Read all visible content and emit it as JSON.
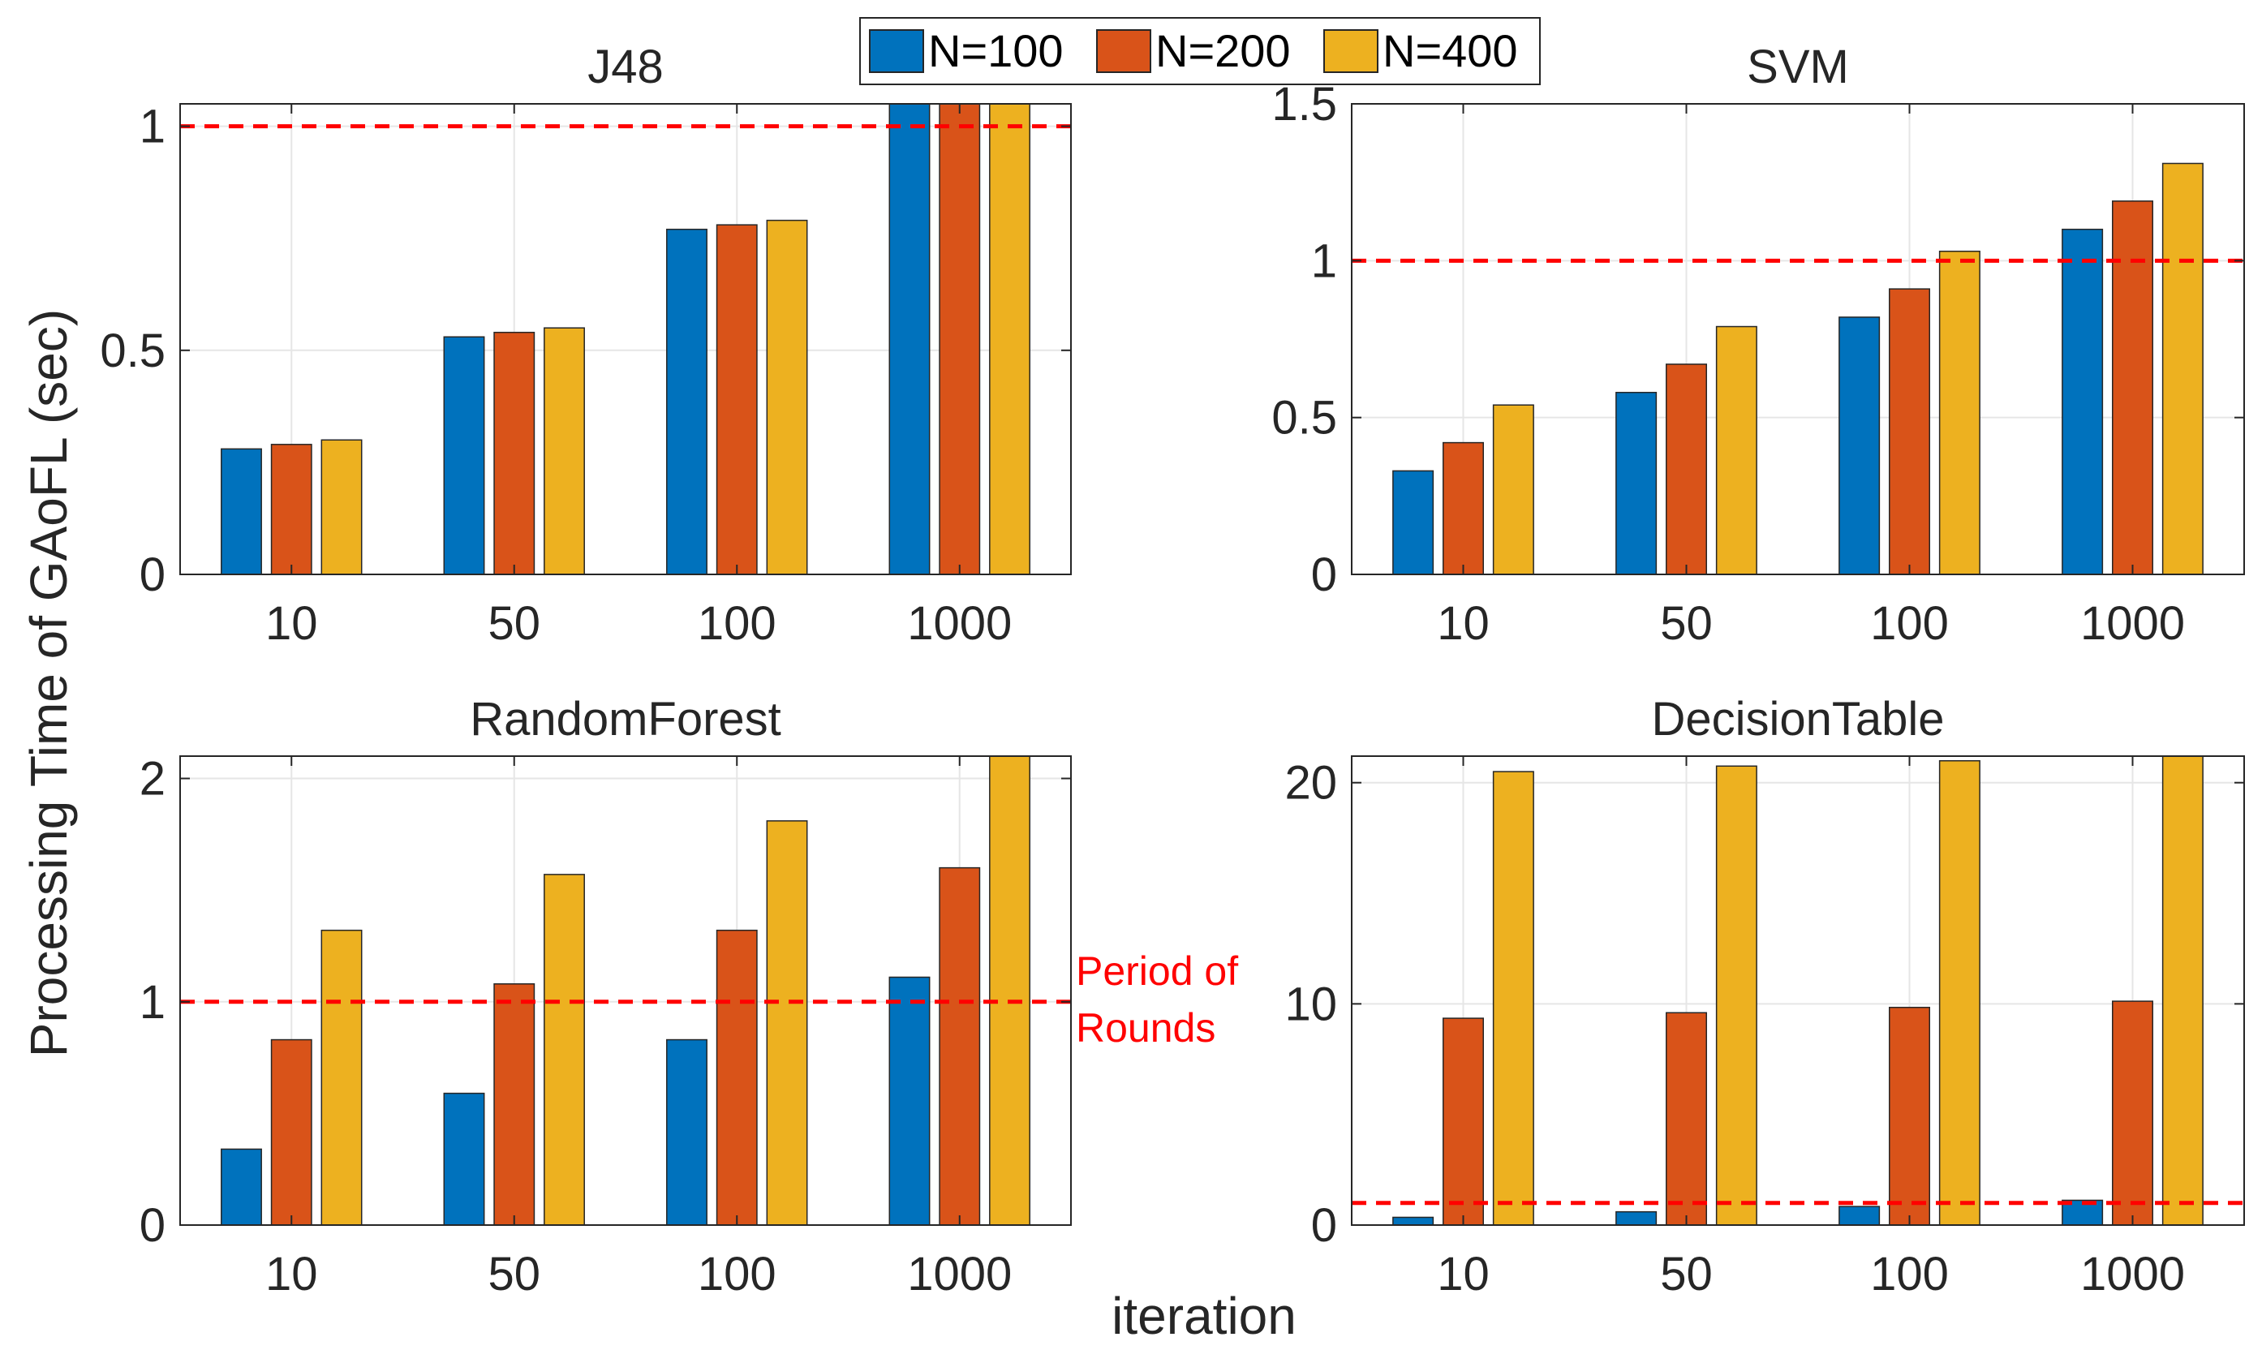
{
  "figure": {
    "ylabel": "Processing Time of GAoFL (sec)",
    "xlabel": "iteration",
    "annotation": [
      "Period of",
      "Rounds"
    ],
    "threshold": 1
  },
  "legend": {
    "placement": "top-center",
    "entries": [
      {
        "name": "N=100",
        "color": "#0072bd"
      },
      {
        "name": "N=200",
        "color": "#d95319"
      },
      {
        "name": "N=400",
        "color": "#edb120"
      }
    ]
  },
  "chart_data": [
    {
      "type": "bar",
      "title": "J48",
      "categories": [
        "10",
        "50",
        "100",
        "1000"
      ],
      "ylim": [
        0,
        1.05
      ],
      "yticks": [
        0,
        0.5,
        1
      ],
      "yticklabels": [
        "0",
        "0.5",
        "1"
      ],
      "grid": true,
      "threshold_line": 1,
      "series": [
        {
          "name": "N=100",
          "values": [
            0.28,
            0.53,
            0.77,
            1.05
          ]
        },
        {
          "name": "N=200",
          "values": [
            0.29,
            0.54,
            0.78,
            1.05
          ]
        },
        {
          "name": "N=400",
          "values": [
            0.3,
            0.55,
            0.79,
            1.05
          ]
        }
      ]
    },
    {
      "type": "bar",
      "title": "SVM",
      "categories": [
        "10",
        "50",
        "100",
        "1000"
      ],
      "ylim": [
        0,
        1.5
      ],
      "yticks": [
        0,
        0.5,
        1,
        1.5
      ],
      "yticklabels": [
        "0",
        "0.5",
        "1",
        "1.5"
      ],
      "grid": true,
      "threshold_line": 1,
      "series": [
        {
          "name": "N=100",
          "values": [
            0.33,
            0.58,
            0.82,
            1.1
          ]
        },
        {
          "name": "N=200",
          "values": [
            0.42,
            0.67,
            0.91,
            1.19
          ]
        },
        {
          "name": "N=400",
          "values": [
            0.54,
            0.79,
            1.03,
            1.31
          ]
        }
      ]
    },
    {
      "type": "bar",
      "title": "RandomForest",
      "categories": [
        "10",
        "50",
        "100",
        "1000"
      ],
      "ylim": [
        0,
        2.1
      ],
      "yticks": [
        0,
        1,
        2
      ],
      "yticklabels": [
        "0",
        "1",
        "2"
      ],
      "grid": true,
      "threshold_line": 1,
      "series": [
        {
          "name": "N=100",
          "values": [
            0.34,
            0.59,
            0.83,
            1.11
          ]
        },
        {
          "name": "N=200",
          "values": [
            0.83,
            1.08,
            1.32,
            1.6
          ]
        },
        {
          "name": "N=400",
          "values": [
            1.32,
            1.57,
            1.81,
            2.1
          ]
        }
      ]
    },
    {
      "type": "bar",
      "title": "DecisionTable",
      "categories": [
        "10",
        "50",
        "100",
        "1000"
      ],
      "ylim": [
        0,
        21.2
      ],
      "yticks": [
        0,
        10,
        20
      ],
      "yticklabels": [
        "0",
        "10",
        "20"
      ],
      "grid": true,
      "threshold_line": 1,
      "series": [
        {
          "name": "N=100",
          "values": [
            0.35,
            0.6,
            0.84,
            1.12
          ]
        },
        {
          "name": "N=200",
          "values": [
            9.35,
            9.6,
            9.84,
            10.12
          ]
        },
        {
          "name": "N=400",
          "values": [
            20.5,
            20.75,
            20.99,
            21.2
          ]
        }
      ]
    }
  ]
}
